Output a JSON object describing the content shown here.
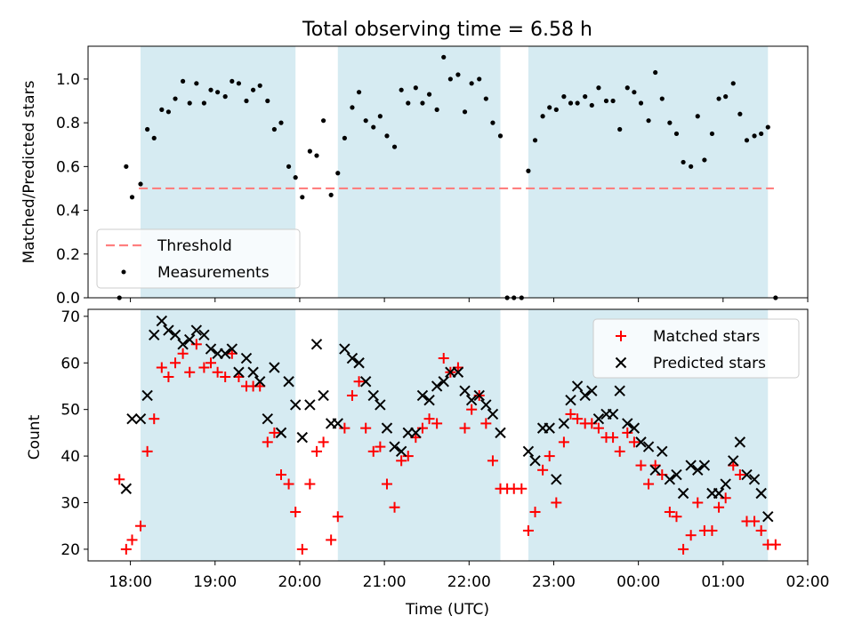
{
  "figure": {
    "title": "Total observing time = 6.58 h",
    "xlabel": "Time (UTC)"
  },
  "colors": {
    "band": "#add8e6",
    "threshold": "#ff7f7f",
    "measurement": "#000000",
    "matched": "#ff0000",
    "predicted": "#000000"
  },
  "chart_data": [
    {
      "type": "scatter",
      "ylabel": "Matched/Predicted stars",
      "xlim_hours": [
        17.5,
        26.0
      ],
      "ylim": [
        0,
        1.15
      ],
      "yticks": [
        0.0,
        0.2,
        0.4,
        0.6,
        0.8,
        1.0
      ],
      "ytick_labels": [
        "0.0",
        "0.2",
        "0.4",
        "0.6",
        "0.8",
        "1.0"
      ],
      "grid": false,
      "legend_position": "lower-left",
      "shaded_intervals_hours": [
        [
          18.12,
          19.95
        ],
        [
          20.45,
          22.37
        ],
        [
          22.7,
          25.53
        ]
      ],
      "threshold": {
        "name": "Threshold",
        "value": 0.5,
        "x_hours": [
          18.1,
          25.6
        ],
        "style": "dashed"
      },
      "series": [
        {
          "name": "Measurements",
          "marker": "dot",
          "x_hours": [
            17.87,
            17.95,
            18.02,
            18.12,
            18.2,
            18.28,
            18.37,
            18.45,
            18.53,
            18.62,
            18.7,
            18.78,
            18.87,
            18.95,
            19.03,
            19.12,
            19.2,
            19.28,
            19.37,
            19.45,
            19.53,
            19.62,
            19.7,
            19.78,
            19.87,
            19.95,
            20.03,
            20.12,
            20.2,
            20.28,
            20.37,
            20.45,
            20.53,
            20.62,
            20.7,
            20.78,
            20.87,
            20.95,
            21.03,
            21.12,
            21.2,
            21.28,
            21.37,
            21.45,
            21.53,
            21.62,
            21.7,
            21.78,
            21.87,
            21.95,
            22.03,
            22.12,
            22.2,
            22.28,
            22.37,
            22.45,
            22.53,
            22.62,
            22.7,
            22.78,
            22.87,
            22.95,
            23.03,
            23.12,
            23.2,
            23.28,
            23.37,
            23.45,
            23.53,
            23.62,
            23.7,
            23.78,
            23.87,
            23.95,
            24.03,
            24.12,
            24.2,
            24.28,
            24.37,
            24.45,
            24.53,
            24.62,
            24.7,
            24.78,
            24.87,
            24.95,
            25.03,
            25.12,
            25.2,
            25.28,
            25.37,
            25.45,
            25.53,
            25.62
          ],
          "y": [
            0.0,
            0.6,
            0.46,
            0.52,
            0.77,
            0.73,
            0.86,
            0.85,
            0.91,
            0.99,
            0.89,
            0.98,
            0.89,
            0.95,
            0.94,
            0.92,
            0.99,
            0.98,
            0.9,
            0.95,
            0.97,
            0.9,
            0.77,
            0.8,
            0.6,
            0.55,
            0.46,
            0.67,
            0.65,
            0.81,
            0.47,
            0.57,
            0.73,
            0.87,
            0.94,
            0.81,
            0.78,
            0.83,
            0.74,
            0.69,
            0.95,
            0.89,
            0.96,
            0.89,
            0.93,
            0.86,
            1.1,
            1.0,
            1.02,
            0.85,
            0.98,
            1.0,
            0.91,
            0.8,
            0.74,
            0.0,
            0.0,
            0.0,
            0.58,
            0.72,
            0.83,
            0.87,
            0.86,
            0.92,
            0.89,
            0.89,
            0.92,
            0.88,
            0.96,
            0.9,
            0.9,
            0.77,
            0.96,
            0.94,
            0.89,
            0.81,
            1.03,
            0.91,
            0.8,
            0.75,
            0.62,
            0.6,
            0.83,
            0.63,
            0.75,
            0.91,
            0.92,
            0.98,
            0.84,
            0.72,
            0.74,
            0.75,
            0.78,
            0.0
          ]
        }
      ]
    },
    {
      "type": "scatter",
      "ylabel": "Count",
      "xlabel": "Time (UTC)",
      "xlim_hours": [
        17.5,
        26.0
      ],
      "xticks_hours": [
        18,
        19,
        20,
        21,
        22,
        23,
        24,
        25,
        26
      ],
      "xtick_labels": [
        "18:00",
        "19:00",
        "20:00",
        "21:00",
        "22:00",
        "23:00",
        "00:00",
        "01:00",
        "02:00"
      ],
      "ylim": [
        17.5,
        71.5
      ],
      "yticks": [
        20,
        30,
        40,
        50,
        60,
        70
      ],
      "ytick_labels": [
        "20",
        "30",
        "40",
        "50",
        "60",
        "70"
      ],
      "grid": false,
      "legend_position": "upper-right",
      "shaded_intervals_hours": [
        [
          18.12,
          19.95
        ],
        [
          20.45,
          22.37
        ],
        [
          22.7,
          25.53
        ]
      ],
      "series": [
        {
          "name": "Matched stars",
          "marker": "+",
          "x_hours": [
            17.87,
            17.95,
            18.02,
            18.12,
            18.2,
            18.28,
            18.37,
            18.45,
            18.53,
            18.62,
            18.7,
            18.78,
            18.87,
            18.95,
            19.03,
            19.12,
            19.2,
            19.28,
            19.37,
            19.45,
            19.53,
            19.62,
            19.7,
            19.78,
            19.87,
            19.95,
            20.03,
            20.12,
            20.2,
            20.28,
            20.37,
            20.45,
            20.53,
            20.62,
            20.7,
            20.78,
            20.87,
            20.95,
            21.03,
            21.12,
            21.2,
            21.28,
            21.37,
            21.45,
            21.53,
            21.62,
            21.7,
            21.78,
            21.87,
            21.95,
            22.03,
            22.12,
            22.2,
            22.28,
            22.37,
            22.45,
            22.53,
            22.62,
            22.7,
            22.78,
            22.87,
            22.95,
            23.03,
            23.12,
            23.2,
            23.28,
            23.37,
            23.45,
            23.53,
            23.62,
            23.7,
            23.78,
            23.87,
            23.95,
            24.03,
            24.12,
            24.2,
            24.28,
            24.37,
            24.45,
            24.53,
            24.62,
            24.7,
            24.78,
            24.87,
            24.95,
            25.03,
            25.12,
            25.2,
            25.28,
            25.37,
            25.45,
            25.53,
            25.62
          ],
          "y": [
            35,
            20,
            22,
            25,
            41,
            48,
            59,
            57,
            60,
            62,
            58,
            64,
            59,
            60,
            58,
            57,
            62,
            57,
            55,
            55,
            55,
            43,
            45,
            36,
            34,
            28,
            20,
            34,
            41,
            43,
            22,
            27,
            46,
            53,
            56,
            46,
            41,
            42,
            34,
            29,
            39,
            40,
            44,
            46,
            48,
            47,
            61,
            58,
            59,
            46,
            50,
            53,
            47,
            39,
            33,
            33,
            33,
            33,
            24,
            28,
            37,
            40,
            30,
            43,
            49,
            48,
            47,
            47,
            46,
            44,
            44,
            41,
            45,
            43,
            38,
            34,
            38,
            36,
            28,
            27,
            20,
            23,
            30,
            24,
            24,
            29,
            31,
            38,
            36,
            26,
            26,
            24,
            21,
            21
          ]
        },
        {
          "name": "Predicted stars",
          "marker": "x",
          "x_hours": [
            17.95,
            18.02,
            18.12,
            18.2,
            18.28,
            18.37,
            18.45,
            18.53,
            18.62,
            18.7,
            18.78,
            18.87,
            18.95,
            19.03,
            19.12,
            19.2,
            19.28,
            19.37,
            19.45,
            19.53,
            19.62,
            19.7,
            19.78,
            19.87,
            19.95,
            20.03,
            20.12,
            20.2,
            20.28,
            20.37,
            20.45,
            20.53,
            20.62,
            20.7,
            20.78,
            20.87,
            20.95,
            21.03,
            21.12,
            21.2,
            21.28,
            21.37,
            21.45,
            21.53,
            21.62,
            21.7,
            21.78,
            21.87,
            21.95,
            22.03,
            22.12,
            22.2,
            22.28,
            22.37,
            22.7,
            22.78,
            22.87,
            22.95,
            23.03,
            23.12,
            23.2,
            23.28,
            23.37,
            23.45,
            23.53,
            23.62,
            23.7,
            23.78,
            23.87,
            23.95,
            24.03,
            24.12,
            24.2,
            24.28,
            24.37,
            24.45,
            24.53,
            24.62,
            24.7,
            24.78,
            24.87,
            24.95,
            25.03,
            25.12,
            25.2,
            25.28,
            25.37,
            25.45,
            25.53,
            25.62
          ],
          "y": [
            33,
            48,
            48,
            53,
            66,
            69,
            67,
            66,
            64,
            65,
            67,
            66,
            63,
            62,
            62,
            63,
            58,
            61,
            58,
            56,
            48,
            59,
            45,
            56,
            51,
            44,
            51,
            64,
            53,
            47,
            47,
            63,
            61,
            60,
            56,
            53,
            51,
            46,
            42,
            41,
            45,
            45,
            53,
            52,
            55,
            56,
            58,
            58,
            54,
            52,
            53,
            51,
            49,
            45,
            41,
            39,
            46,
            46,
            35,
            47,
            52,
            55,
            53,
            54,
            48,
            49,
            49,
            54,
            47,
            46,
            43,
            42,
            37,
            41,
            35,
            36,
            32,
            38,
            37,
            38,
            32,
            32,
            34,
            39,
            43,
            36,
            35,
            32,
            27,
            null
          ]
        }
      ]
    }
  ]
}
